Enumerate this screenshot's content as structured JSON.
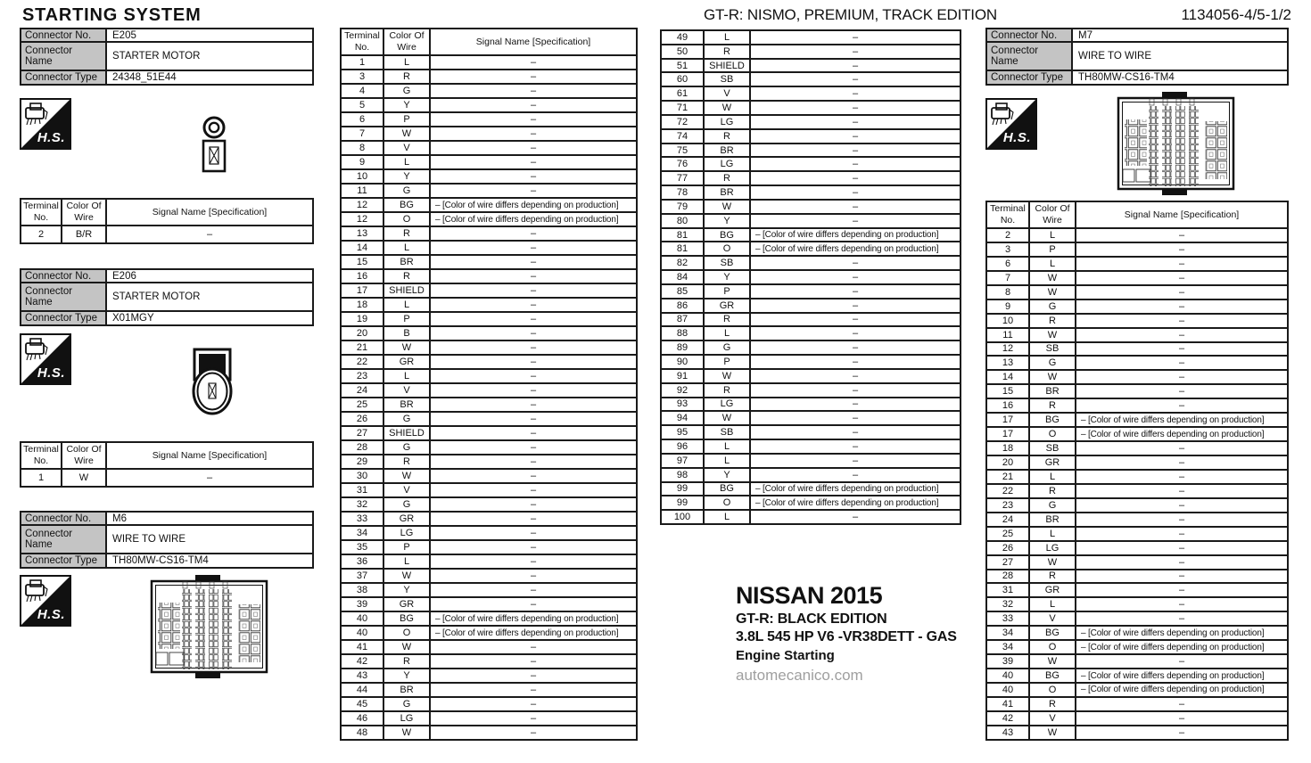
{
  "page": {
    "title": "STARTING SYSTEM",
    "edition_header": "GT-R: NISMO, PREMIUM, TRACK EDITION",
    "doc_number": "1134056-4/5-1/2"
  },
  "labels": {
    "connector_no": "Connector No.",
    "connector_name": "Connector Name",
    "connector_type": "Connector Type",
    "terminal_no": "Terminal No.",
    "color_of_wire": "Color Of Wire",
    "signal_name": "Signal Name [Specification]",
    "hs": "H.S."
  },
  "connectors": {
    "e205": {
      "no": "E205",
      "name": "STARTER MOTOR",
      "type": "24348_51E44"
    },
    "e206": {
      "no": "E206",
      "name": "STARTER MOTOR",
      "type": "X01MGY"
    },
    "m6": {
      "no": "M6",
      "name": "WIRE TO WIRE",
      "type": "TH80MW-CS16-TM4"
    },
    "m7": {
      "no": "M7",
      "name": "WIRE TO WIRE",
      "type": "TH80MW-CS16-TM4"
    }
  },
  "prod_note": "– [Color of wire differs depending on production]",
  "terminal_tables": {
    "e205_rows": [
      [
        "2",
        "B/R",
        "–"
      ]
    ],
    "e206_rows": [
      [
        "1",
        "W",
        "–"
      ]
    ],
    "mid1_rows": [
      [
        "1",
        "L",
        "–"
      ],
      [
        "3",
        "R",
        "–"
      ],
      [
        "4",
        "G",
        "–"
      ],
      [
        "5",
        "Y",
        "–"
      ],
      [
        "6",
        "P",
        "–"
      ],
      [
        "7",
        "W",
        "–"
      ],
      [
        "8",
        "V",
        "–"
      ],
      [
        "9",
        "L",
        "–"
      ],
      [
        "10",
        "Y",
        "–"
      ],
      [
        "11",
        "G",
        "–"
      ],
      [
        "12",
        "BG",
        "– [Color of wire differs depending on production]"
      ],
      [
        "12",
        "O",
        "– [Color of wire differs depending on production]"
      ],
      [
        "13",
        "R",
        "–"
      ],
      [
        "14",
        "L",
        "–"
      ],
      [
        "15",
        "BR",
        "–"
      ],
      [
        "16",
        "R",
        "–"
      ],
      [
        "17",
        "SHIELD",
        "–"
      ],
      [
        "18",
        "L",
        "–"
      ],
      [
        "19",
        "P",
        "–"
      ],
      [
        "20",
        "B",
        "–"
      ],
      [
        "21",
        "W",
        "–"
      ],
      [
        "22",
        "GR",
        "–"
      ],
      [
        "23",
        "L",
        "–"
      ],
      [
        "24",
        "V",
        "–"
      ],
      [
        "25",
        "BR",
        "–"
      ],
      [
        "26",
        "G",
        "–"
      ],
      [
        "27",
        "SHIELD",
        "–"
      ],
      [
        "28",
        "G",
        "–"
      ],
      [
        "29",
        "R",
        "–"
      ],
      [
        "30",
        "W",
        "–"
      ],
      [
        "31",
        "V",
        "–"
      ],
      [
        "32",
        "G",
        "–"
      ],
      [
        "33",
        "GR",
        "–"
      ],
      [
        "34",
        "LG",
        "–"
      ],
      [
        "35",
        "P",
        "–"
      ],
      [
        "36",
        "L",
        "–"
      ],
      [
        "37",
        "W",
        "–"
      ],
      [
        "38",
        "Y",
        "–"
      ],
      [
        "39",
        "GR",
        "–"
      ],
      [
        "40",
        "BG",
        "– [Color of wire differs depending on production]"
      ],
      [
        "40",
        "O",
        "– [Color of wire differs depending on production]"
      ],
      [
        "41",
        "W",
        "–"
      ],
      [
        "42",
        "R",
        "–"
      ],
      [
        "43",
        "Y",
        "–"
      ],
      [
        "44",
        "BR",
        "–"
      ],
      [
        "45",
        "G",
        "–"
      ],
      [
        "46",
        "LG",
        "–"
      ],
      [
        "48",
        "W",
        "–"
      ]
    ],
    "mid2_rows": [
      [
        "49",
        "L",
        "–"
      ],
      [
        "50",
        "R",
        "–"
      ],
      [
        "51",
        "SHIELD",
        "–"
      ],
      [
        "60",
        "SB",
        "–"
      ],
      [
        "61",
        "V",
        "–"
      ],
      [
        "71",
        "W",
        "–"
      ],
      [
        "72",
        "LG",
        "–"
      ],
      [
        "74",
        "R",
        "–"
      ],
      [
        "75",
        "BR",
        "–"
      ],
      [
        "76",
        "LG",
        "–"
      ],
      [
        "77",
        "R",
        "–"
      ],
      [
        "78",
        "BR",
        "–"
      ],
      [
        "79",
        "W",
        "–"
      ],
      [
        "80",
        "Y",
        "–"
      ],
      [
        "81",
        "BG",
        "– [Color of wire differs depending on production]"
      ],
      [
        "81",
        "O",
        "– [Color of wire differs depending on production]"
      ],
      [
        "82",
        "SB",
        "–"
      ],
      [
        "84",
        "Y",
        "–"
      ],
      [
        "85",
        "P",
        "–"
      ],
      [
        "86",
        "GR",
        "–"
      ],
      [
        "87",
        "R",
        "–"
      ],
      [
        "88",
        "L",
        "–"
      ],
      [
        "89",
        "G",
        "–"
      ],
      [
        "90",
        "P",
        "–"
      ],
      [
        "91",
        "W",
        "–"
      ],
      [
        "92",
        "R",
        "–"
      ],
      [
        "93",
        "LG",
        "–"
      ],
      [
        "94",
        "W",
        "–"
      ],
      [
        "95",
        "SB",
        "–"
      ],
      [
        "96",
        "L",
        "–"
      ],
      [
        "97",
        "L",
        "–"
      ],
      [
        "98",
        "Y",
        "–"
      ],
      [
        "99",
        "BG",
        "– [Color of wire differs depending on production]"
      ],
      [
        "99",
        "O",
        "– [Color of wire differs depending on production]"
      ],
      [
        "100",
        "L",
        "–"
      ]
    ],
    "m7_rows": [
      [
        "2",
        "L",
        "–"
      ],
      [
        "3",
        "P",
        "–"
      ],
      [
        "6",
        "L",
        "–"
      ],
      [
        "7",
        "W",
        "–"
      ],
      [
        "8",
        "W",
        "–"
      ],
      [
        "9",
        "G",
        "–"
      ],
      [
        "10",
        "R",
        "–"
      ],
      [
        "11",
        "W",
        "–"
      ],
      [
        "12",
        "SB",
        "–"
      ],
      [
        "13",
        "G",
        "–"
      ],
      [
        "14",
        "W",
        "–"
      ],
      [
        "15",
        "BR",
        "–"
      ],
      [
        "16",
        "R",
        "–"
      ],
      [
        "17",
        "BG",
        "– [Color of wire differs depending on production]"
      ],
      [
        "17",
        "O",
        "– [Color of wire differs depending on production]"
      ],
      [
        "18",
        "SB",
        "–"
      ],
      [
        "20",
        "GR",
        "–"
      ],
      [
        "21",
        "L",
        "–"
      ],
      [
        "22",
        "R",
        "–"
      ],
      [
        "23",
        "G",
        "–"
      ],
      [
        "24",
        "BR",
        "–"
      ],
      [
        "25",
        "L",
        "–"
      ],
      [
        "26",
        "LG",
        "–"
      ],
      [
        "27",
        "W",
        "–"
      ],
      [
        "28",
        "R",
        "–"
      ],
      [
        "31",
        "GR",
        "–"
      ],
      [
        "32",
        "L",
        "–"
      ],
      [
        "33",
        "V",
        "–"
      ],
      [
        "34",
        "BG",
        "– [Color of wire differs depending on production]"
      ],
      [
        "34",
        "O",
        "– [Color of wire differs depending on production]"
      ],
      [
        "39",
        "W",
        "–"
      ],
      [
        "40",
        "BG",
        "– [Color of wire differs depending on production]"
      ],
      [
        "40",
        "O",
        "– [Color of wire differs depending on production]"
      ],
      [
        "41",
        "R",
        "–"
      ],
      [
        "42",
        "V",
        "–"
      ],
      [
        "43",
        "W",
        "–"
      ]
    ]
  },
  "footer": {
    "brand": "NISSAN 2015",
    "model": "GT-R: BLACK EDITION",
    "engine": "3.8L 545 HP  V6 -VR38DETT - GAS",
    "section": "Engine Starting",
    "site": "automecanico.com"
  },
  "colors": {
    "label_bg": "#c4c4c4",
    "line": "#1a1a1a",
    "muted": "#9f9f9f"
  }
}
